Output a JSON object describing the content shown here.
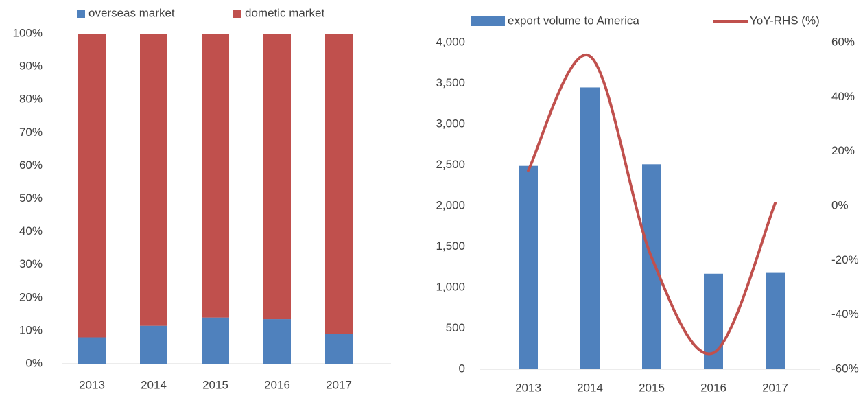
{
  "chart_data": [
    {
      "type": "stacked_bar",
      "categories": [
        "2013",
        "2014",
        "2015",
        "2016",
        "2017"
      ],
      "series": [
        {
          "name": "overseas market",
          "color": "#4f81bd",
          "values": [
            8,
            11.5,
            14,
            13.5,
            9
          ]
        },
        {
          "name": "dometic market",
          "color": "#c0504d",
          "values": [
            92,
            88.5,
            86,
            86.5,
            91
          ]
        }
      ],
      "ylim": [
        0,
        100
      ],
      "yticks": [
        {
          "value": 0,
          "label": "0%"
        },
        {
          "value": 10,
          "label": "10%"
        },
        {
          "value": 20,
          "label": "20%"
        },
        {
          "value": 30,
          "label": "30%"
        },
        {
          "value": 40,
          "label": "40%"
        },
        {
          "value": 50,
          "label": "50%"
        },
        {
          "value": 60,
          "label": "60%"
        },
        {
          "value": 70,
          "label": "70%"
        },
        {
          "value": 80,
          "label": "80%"
        },
        {
          "value": 90,
          "label": "90%"
        },
        {
          "value": 100,
          "label": "100%"
        }
      ],
      "grid": false
    },
    {
      "type": "bar_line",
      "categories": [
        "2013",
        "2014",
        "2015",
        "2016",
        "2017"
      ],
      "series": [
        {
          "name": "export volume to America",
          "color": "#4f81bd",
          "values": [
            2490,
            3450,
            2510,
            1170,
            1180
          ]
        },
        {
          "name": "YoY-RHS (%)",
          "color": "#c0504d",
          "values": [
            13,
            55,
            -19,
            -54,
            1
          ],
          "axis": "y2"
        }
      ],
      "ylim": [
        0,
        4000
      ],
      "yticks": [
        0,
        500,
        {
          "value": 1000,
          "label": "1,000"
        },
        {
          "value": 1500,
          "label": "1,500"
        },
        {
          "value": 2000,
          "label": "2,000"
        },
        {
          "value": 2500,
          "label": "2,500"
        },
        {
          "value": 3000,
          "label": "3,000"
        },
        {
          "value": 3500,
          "label": "3,500"
        },
        {
          "value": 4000,
          "label": "4,000"
        }
      ],
      "y2lim": [
        -60,
        60
      ],
      "y2ticks": [
        {
          "value": -60,
          "label": "-60%"
        },
        {
          "value": -40,
          "label": "-40%"
        },
        {
          "value": -20,
          "label": "-20%"
        },
        {
          "value": 0,
          "label": "0%"
        },
        {
          "value": 20,
          "label": "20%"
        },
        {
          "value": 40,
          "label": "40%"
        },
        {
          "value": 60,
          "label": "60%"
        }
      ],
      "grid": false
    }
  ]
}
